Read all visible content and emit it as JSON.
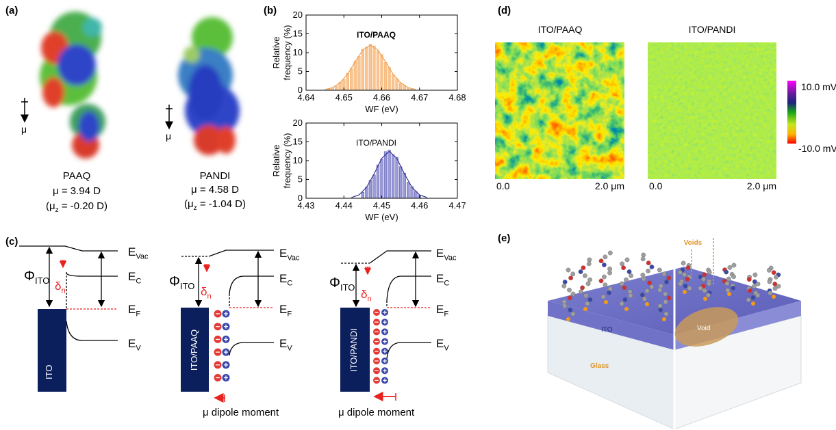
{
  "a": {
    "label": "(a)",
    "molecules": [
      {
        "name": "PAAQ",
        "axis": "μ",
        "dipole": "μ = 3.94 D",
        "dipole_z": {
          "open": "(μ",
          "sub": "z",
          "close": " = -0.20 D)"
        }
      },
      {
        "name": "PANDI",
        "axis": "μ",
        "dipole": "μ = 4.58 D",
        "dipole_z": {
          "open": "(μ",
          "sub": "z",
          "close": " = -1.04 D)"
        }
      }
    ]
  },
  "b": {
    "label": "(b)"
  },
  "chart_data": [
    {
      "type": "bar",
      "title": "ITO/PAAQ",
      "title_bold": true,
      "xlabel": "WF (eV)",
      "ylabel": [
        "Relative",
        "frequency (%)"
      ],
      "x": [
        4.646,
        4.647,
        4.648,
        4.649,
        4.65,
        4.651,
        4.652,
        4.653,
        4.654,
        4.655,
        4.656,
        4.657,
        4.658,
        4.659,
        4.66,
        4.661,
        4.662,
        4.663,
        4.664,
        4.665,
        4.666,
        4.667,
        4.668
      ],
      "values": [
        0.4,
        0.7,
        1.1,
        2.1,
        2.9,
        4.5,
        5.8,
        7.8,
        9.0,
        10.9,
        11.5,
        12.2,
        11.8,
        10.5,
        9.5,
        7.4,
        6.1,
        4.2,
        3.1,
        1.9,
        1.3,
        0.6,
        0.3
      ],
      "color": "#f8c592",
      "fit": {
        "x": [
          4.645,
          4.647,
          4.649,
          4.651,
          4.653,
          4.655,
          4.657,
          4.659,
          4.661,
          4.663,
          4.665,
          4.667,
          4.669
        ],
        "values": [
          0.2,
          0.7,
          2.0,
          4.3,
          7.6,
          10.7,
          12,
          10.7,
          7.6,
          4.3,
          2.0,
          0.7,
          0.2
        ],
        "color": "#f0a050"
      },
      "xlim": [
        4.64,
        4.68
      ],
      "xticks": [
        4.64,
        4.65,
        4.66,
        4.67,
        4.68
      ],
      "ylim": [
        0,
        20
      ],
      "yticks": [
        0,
        5,
        10,
        15,
        20
      ]
    },
    {
      "type": "bar",
      "title": "ITO/PANDI",
      "title_bold": false,
      "xlabel": "WF (eV)",
      "ylabel": [
        "Relative",
        "frequency (%)"
      ],
      "x": [
        4.445,
        4.446,
        4.447,
        4.448,
        4.449,
        4.45,
        4.451,
        4.452,
        4.453,
        4.454,
        4.455,
        4.456,
        4.457,
        4.458,
        4.459,
        4.46
      ],
      "values": [
        1.6,
        3.0,
        4.8,
        6.2,
        8.9,
        10.4,
        12.4,
        12.8,
        11.6,
        10.9,
        8.4,
        6.7,
        4.3,
        3.1,
        1.8,
        0.8
      ],
      "color": "#9b9bdc",
      "fit": {
        "x": [
          4.442,
          4.444,
          4.446,
          4.448,
          4.45,
          4.452,
          4.454,
          4.456,
          4.458,
          4.46,
          4.462
        ],
        "values": [
          0.2,
          0.9,
          2.9,
          6.5,
          10.6,
          12.5,
          10.6,
          6.5,
          2.9,
          0.9,
          0.2
        ],
        "color": "#35358f"
      },
      "xlim": [
        4.43,
        4.47
      ],
      "xticks": [
        4.43,
        4.44,
        4.45,
        4.46,
        4.47
      ],
      "ylim": [
        0,
        20
      ],
      "yticks": [
        0,
        5,
        10,
        15,
        20
      ]
    }
  ],
  "c": {
    "label": "(c)",
    "diagrams": [
      {
        "block": "ITO",
        "phi": {
          "symbol": "Φ",
          "sub": "ITO"
        },
        "delta": {
          "symbol": "δ",
          "sub": "n"
        },
        "levels": {
          "vac": {
            "symbol": "E",
            "sub": "Vac"
          },
          "c": {
            "symbol": "E",
            "sub": "C"
          },
          "f": {
            "symbol": "E",
            "sub": "F"
          },
          "v": {
            "symbol": "E",
            "sub": "V"
          }
        }
      },
      {
        "block": "ITO/PAAQ",
        "phi": {
          "symbol": "Φ",
          "sub": "ITO"
        },
        "delta": {
          "symbol": "δ",
          "sub": "n"
        },
        "levels": {
          "vac": {
            "symbol": "E",
            "sub": "Vac"
          },
          "c": {
            "symbol": "E",
            "sub": "C"
          },
          "f": {
            "symbol": "E",
            "sub": "F"
          },
          "v": {
            "symbol": "E",
            "sub": "V"
          }
        },
        "dipole": "μ dipole moment"
      },
      {
        "block": "ITO/PANDI",
        "phi": {
          "symbol": "Φ",
          "sub": "ITO"
        },
        "delta": {
          "symbol": "δ",
          "sub": "n"
        },
        "levels": {
          "vac": {
            "symbol": "E",
            "sub": "Vac"
          },
          "c": {
            "symbol": "E",
            "sub": "C"
          },
          "f": {
            "symbol": "E",
            "sub": "F"
          },
          "v": {
            "symbol": "E",
            "sub": "V"
          }
        },
        "dipole": "μ dipole moment"
      }
    ]
  },
  "d": {
    "label": "(d)",
    "maps": [
      {
        "title": "ITO/PAAQ",
        "x_start": "0.0",
        "x_end": "2.0 μm"
      },
      {
        "title": "ITO/PANDI",
        "x_start": "0.0",
        "x_end": "2.0 μm"
      }
    ],
    "colorbar": {
      "max": "10.0 mV",
      "min": "-10.0 mV"
    }
  },
  "e": {
    "label": "(e)",
    "voids": "Voids",
    "ito": "ITO",
    "void": "Void",
    "glass": "Glass"
  }
}
